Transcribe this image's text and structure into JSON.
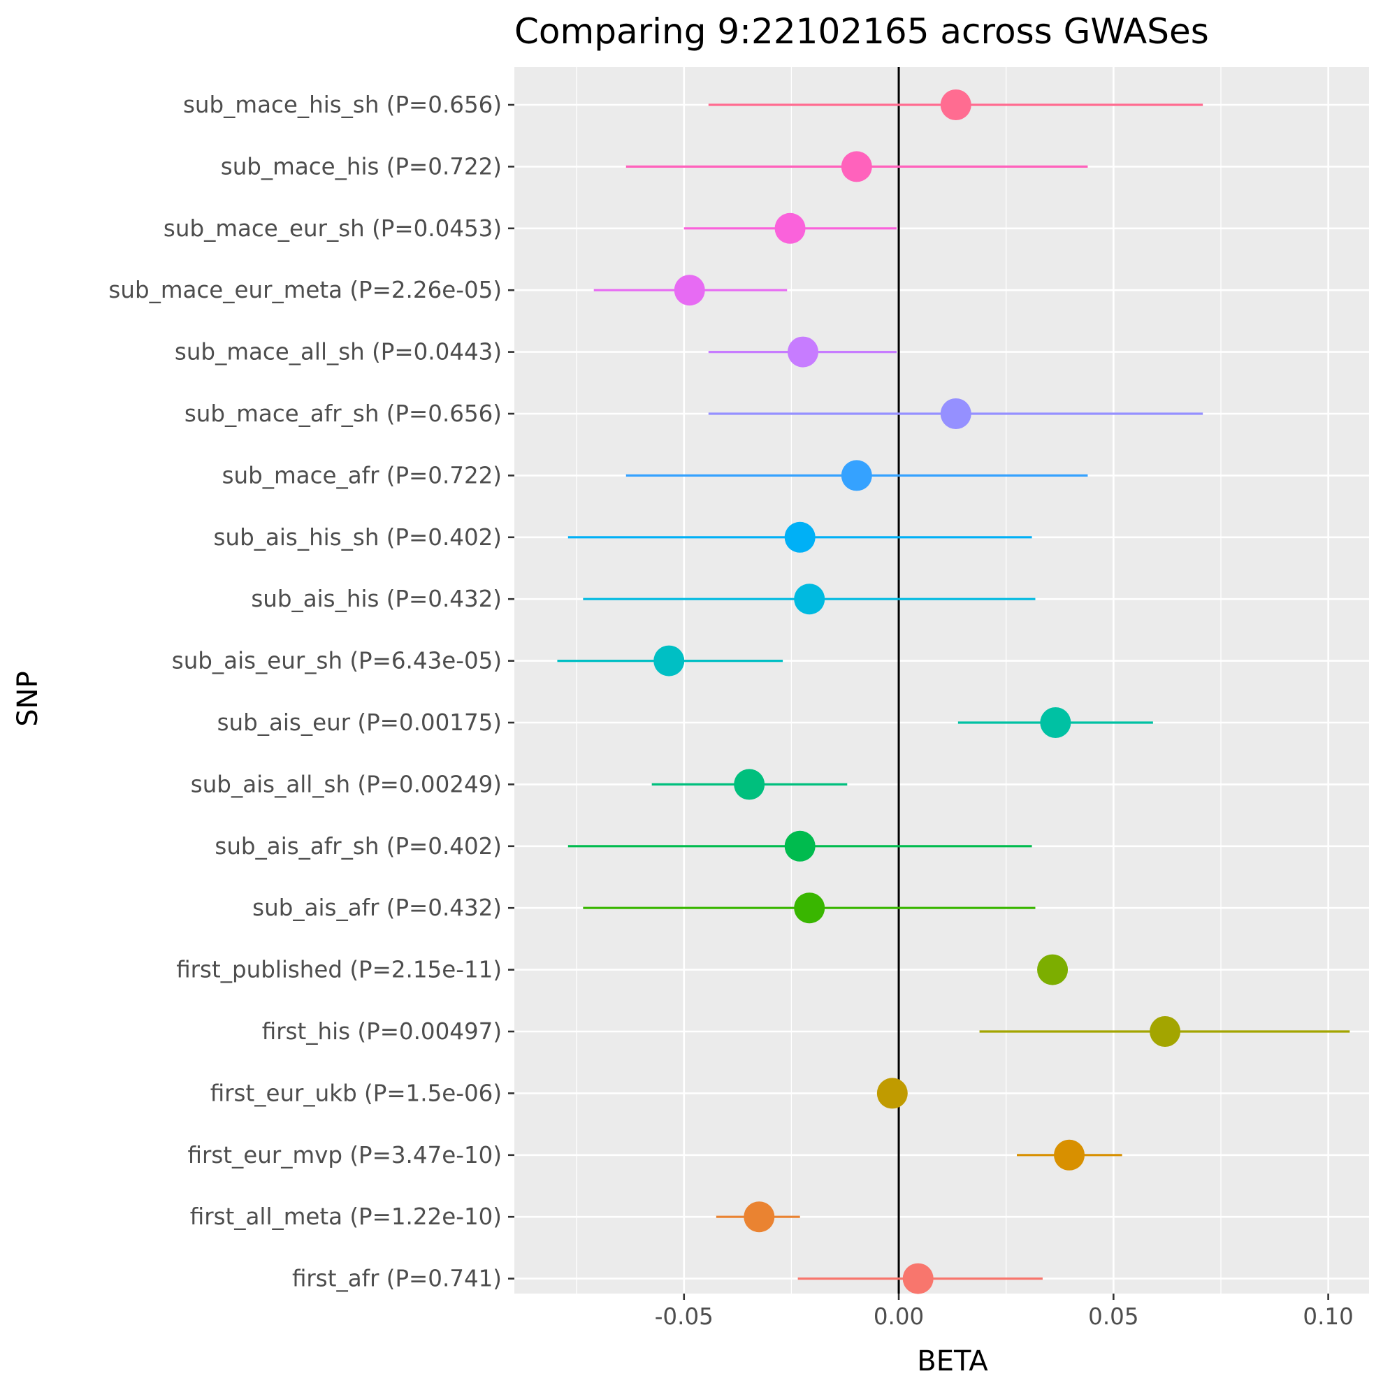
{
  "chart_data": {
    "type": "scatter",
    "subtype": "forest-plot-with-error-bars",
    "title": "Comparing 9:22102165 across GWASes",
    "xlabel": "BETA",
    "ylabel": "SNP",
    "xlim": [
      -0.0895,
      0.1095
    ],
    "x_ticks": [
      -0.05,
      0.0,
      0.05,
      0.1
    ],
    "x_tick_labels": [
      "-0.05",
      "0.00",
      "0.05",
      "0.10"
    ],
    "reference_line_x": 0,
    "grid": true,
    "legend": "none",
    "background": "#ebebeb",
    "series": [
      {
        "label": "first_afr (P=0.741)",
        "beta": 0.0045,
        "lo": -0.0235,
        "hi": 0.0335,
        "color": "#F8766D"
      },
      {
        "label": "first_all_meta (P=1.22e-10)",
        "beta": -0.0325,
        "lo": -0.0425,
        "hi": -0.023,
        "color": "#EA8331"
      },
      {
        "label": "first_eur_mvp (P=3.47e-10)",
        "beta": 0.0397,
        "lo": 0.0275,
        "hi": 0.052,
        "color": "#D89000"
      },
      {
        "label": "first_eur_ukb (P=1.5e-06)",
        "beta": -0.0015,
        "lo": -0.0015,
        "hi": -0.0015,
        "color": "#C09B00"
      },
      {
        "label": "first_his (P=0.00497)",
        "beta": 0.062,
        "lo": 0.0188,
        "hi": 0.105,
        "color": "#A3A500"
      },
      {
        "label": "first_published (P=2.15e-11)",
        "beta": 0.0358,
        "lo": 0.0358,
        "hi": 0.0358,
        "color": "#7CAE00"
      },
      {
        "label": "sub_ais_afr (P=0.432)",
        "beta": -0.0208,
        "lo": -0.0735,
        "hi": 0.0318,
        "color": "#39B600"
      },
      {
        "label": "sub_ais_afr_sh (P=0.402)",
        "beta": -0.023,
        "lo": -0.077,
        "hi": 0.031,
        "color": "#00BB4E"
      },
      {
        "label": "sub_ais_all_sh (P=0.00249)",
        "beta": -0.0348,
        "lo": -0.0575,
        "hi": -0.012,
        "color": "#00BF7D"
      },
      {
        "label": "sub_ais_eur (P=0.00175)",
        "beta": 0.0365,
        "lo": 0.0138,
        "hi": 0.0592,
        "color": "#00C1A3"
      },
      {
        "label": "sub_ais_eur_sh (P=6.43e-05)",
        "beta": -0.0535,
        "lo": -0.0795,
        "hi": -0.027,
        "color": "#00BFC4"
      },
      {
        "label": "sub_ais_his (P=0.432)",
        "beta": -0.0208,
        "lo": -0.0735,
        "hi": 0.0318,
        "color": "#00BAE0"
      },
      {
        "label": "sub_ais_his_sh (P=0.402)",
        "beta": -0.023,
        "lo": -0.077,
        "hi": 0.031,
        "color": "#00B0F6"
      },
      {
        "label": "sub_mace_afr (P=0.722)",
        "beta": -0.0098,
        "lo": -0.0635,
        "hi": 0.044,
        "color": "#35A2FF"
      },
      {
        "label": "sub_mace_afr_sh (P=0.656)",
        "beta": 0.0133,
        "lo": -0.0443,
        "hi": 0.0708,
        "color": "#9590FF"
      },
      {
        "label": "sub_mace_all_sh (P=0.0443)",
        "beta": -0.0223,
        "lo": -0.0443,
        "hi": -0.0005,
        "color": "#C77CFF"
      },
      {
        "label": "sub_mace_eur_meta (P=2.26e-05)",
        "beta": -0.0487,
        "lo": -0.071,
        "hi": -0.026,
        "color": "#E76BF3"
      },
      {
        "label": "sub_mace_eur_sh (P=0.0453)",
        "beta": -0.0253,
        "lo": -0.05,
        "hi": -0.0005,
        "color": "#FA62DB"
      },
      {
        "label": "sub_mace_his (P=0.722)",
        "beta": -0.0098,
        "lo": -0.0635,
        "hi": 0.044,
        "color": "#FF62BC"
      },
      {
        "label": "sub_mace_his_sh (P=0.656)",
        "beta": 0.0133,
        "lo": -0.0443,
        "hi": 0.0708,
        "color": "#FF6C91"
      }
    ]
  }
}
